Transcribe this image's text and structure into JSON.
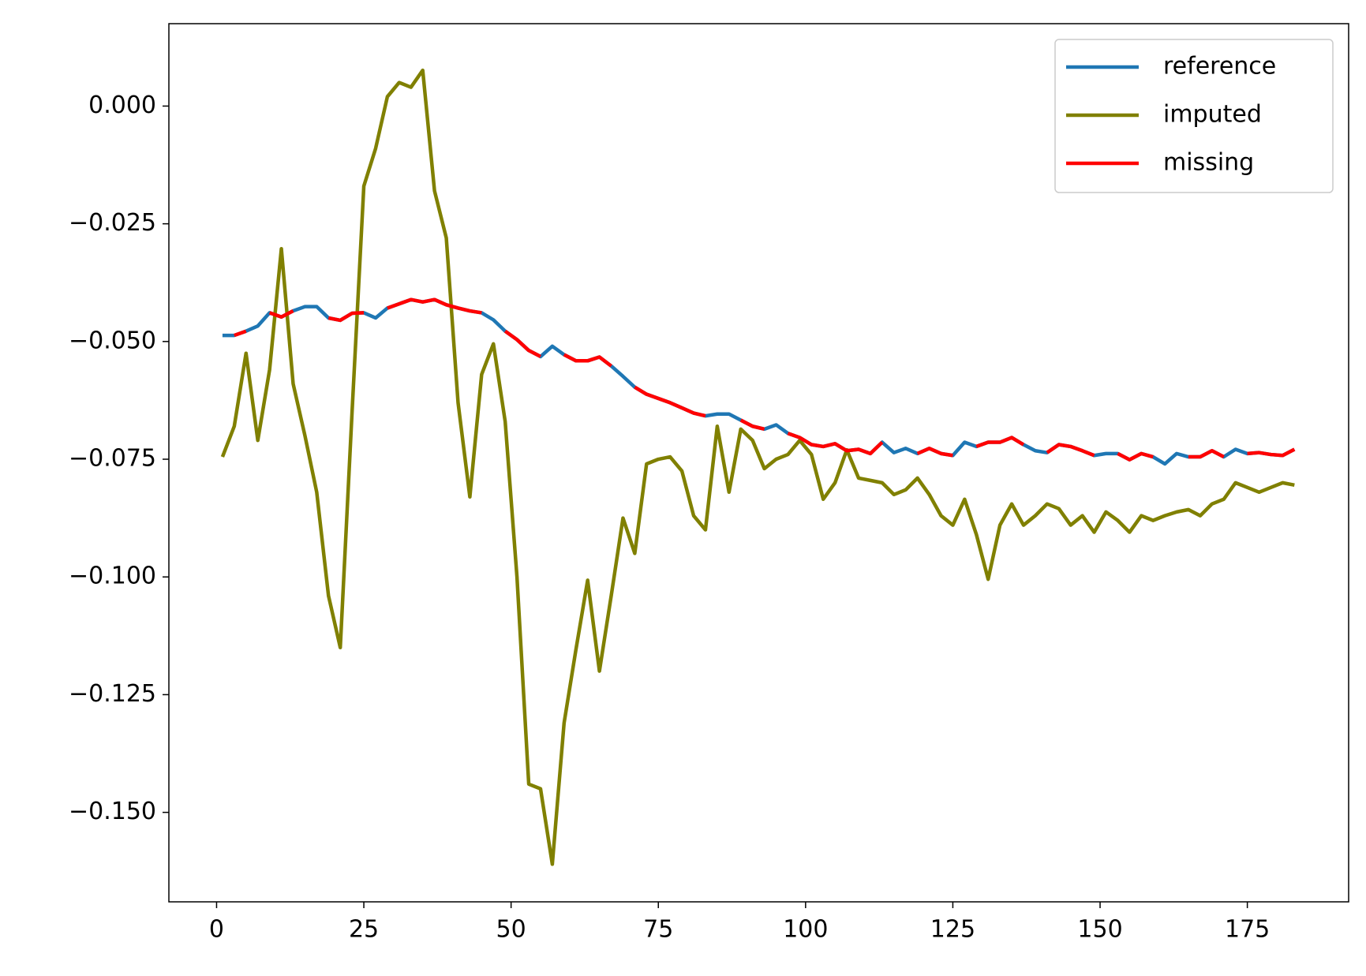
{
  "chart_data": {
    "type": "line",
    "x": [
      1,
      3,
      5,
      7,
      9,
      11,
      13,
      15,
      17,
      19,
      21,
      23,
      25,
      27,
      29,
      31,
      33,
      35,
      37,
      39,
      41,
      43,
      45,
      47,
      49,
      51,
      53,
      55,
      57,
      59,
      61,
      63,
      65,
      67,
      69,
      71,
      73,
      75,
      77,
      79,
      81,
      83,
      85,
      87,
      89,
      91,
      93,
      95,
      97,
      99,
      101,
      103,
      105,
      107,
      109,
      111,
      113,
      115,
      117,
      119,
      121,
      123,
      125,
      127,
      129,
      131,
      133,
      135,
      137,
      139,
      141,
      143,
      145,
      147,
      149,
      151,
      153,
      155,
      157,
      159,
      161,
      163,
      165,
      167,
      169,
      171,
      173,
      175,
      177,
      179,
      181,
      183
    ],
    "series": [
      {
        "name": "reference",
        "color": "#1f77b4",
        "values": [
          -0.0487,
          -0.0487,
          -0.0478,
          -0.0467,
          -0.0439,
          -0.0448,
          -0.0435,
          -0.0426,
          -0.0426,
          -0.045,
          -0.0455,
          -0.044,
          -0.0439,
          -0.045,
          -0.0429,
          -0.042,
          -0.0411,
          -0.0416,
          -0.0411,
          -0.0422,
          -0.0429,
          -0.0435,
          -0.0439,
          -0.0454,
          -0.0478,
          -0.0496,
          -0.0519,
          -0.0532,
          -0.051,
          -0.0528,
          -0.0541,
          -0.0541,
          -0.0533,
          -0.0552,
          -0.0574,
          -0.0597,
          -0.0612,
          -0.0621,
          -0.063,
          -0.0641,
          -0.0652,
          -0.0658,
          -0.0654,
          -0.0654,
          -0.0667,
          -0.068,
          -0.0686,
          -0.0677,
          -0.0695,
          -0.0704,
          -0.0719,
          -0.0723,
          -0.0717,
          -0.0732,
          -0.0729,
          -0.0738,
          -0.0714,
          -0.0736,
          -0.0727,
          -0.0738,
          -0.0727,
          -0.0738,
          -0.0742,
          -0.0714,
          -0.0723,
          -0.0714,
          -0.0714,
          -0.0704,
          -0.0719,
          -0.0732,
          -0.0736,
          -0.0719,
          -0.0723,
          -0.0732,
          -0.0742,
          -0.0738,
          -0.0738,
          -0.0751,
          -0.0738,
          -0.0745,
          -0.076,
          -0.0738,
          -0.0745,
          -0.0745,
          -0.0732,
          -0.0745,
          -0.0729,
          -0.0738,
          -0.0736,
          -0.074,
          -0.0742,
          -0.0729
        ]
      },
      {
        "name": "imputed",
        "color": "#808000",
        "values": [
          -0.0745,
          -0.068,
          -0.0525,
          -0.071,
          -0.056,
          -0.0303,
          -0.059,
          -0.07,
          -0.082,
          -0.104,
          -0.115,
          -0.065,
          -0.017,
          -0.009,
          0.002,
          0.005,
          0.004,
          0.0076,
          -0.018,
          -0.028,
          -0.063,
          -0.083,
          -0.057,
          -0.0505,
          -0.067,
          -0.1,
          -0.144,
          -0.145,
          -0.161,
          -0.131,
          -0.1155,
          -0.1007,
          -0.12,
          -0.104,
          -0.0875,
          -0.095,
          -0.076,
          -0.075,
          -0.0745,
          -0.0775,
          -0.087,
          -0.09,
          -0.068,
          -0.082,
          -0.0686,
          -0.071,
          -0.077,
          -0.075,
          -0.074,
          -0.071,
          -0.074,
          -0.0835,
          -0.08,
          -0.073,
          -0.079,
          -0.0795,
          -0.08,
          -0.0825,
          -0.0815,
          -0.079,
          -0.0825,
          -0.087,
          -0.089,
          -0.0835,
          -0.091,
          -0.1005,
          -0.089,
          -0.0845,
          -0.089,
          -0.087,
          -0.0845,
          -0.0855,
          -0.089,
          -0.087,
          -0.0905,
          -0.0862,
          -0.088,
          -0.0905,
          -0.087,
          -0.088,
          -0.087,
          -0.0862,
          -0.0857,
          -0.087,
          -0.0845,
          -0.0835,
          -0.08,
          -0.081,
          -0.082,
          -0.081,
          -0.08,
          -0.0805
        ]
      },
      {
        "name": "missing",
        "color": "#ff0000",
        "values": [
          null,
          -0.0487,
          -0.0478,
          null,
          -0.0439,
          -0.0448,
          -0.0435,
          null,
          null,
          -0.045,
          -0.0455,
          -0.044,
          -0.0439,
          null,
          -0.0429,
          -0.042,
          -0.0411,
          -0.0416,
          -0.0411,
          -0.0422,
          -0.0429,
          -0.0435,
          -0.0439,
          null,
          -0.0478,
          -0.0496,
          -0.0519,
          -0.0532,
          null,
          -0.0528,
          -0.0541,
          -0.0541,
          -0.0533,
          -0.0552,
          null,
          -0.0597,
          -0.0612,
          -0.0621,
          -0.063,
          -0.0641,
          -0.0652,
          -0.0658,
          null,
          null,
          -0.0667,
          -0.068,
          -0.0686,
          null,
          -0.0695,
          -0.0704,
          -0.0719,
          -0.0723,
          -0.0717,
          -0.0732,
          -0.0729,
          -0.0738,
          -0.0714,
          null,
          null,
          -0.0738,
          -0.0727,
          -0.0738,
          -0.0742,
          null,
          -0.0723,
          -0.0714,
          -0.0714,
          -0.0704,
          -0.0719,
          null,
          -0.0736,
          -0.0719,
          -0.0723,
          -0.0732,
          -0.0742,
          null,
          -0.0738,
          -0.0751,
          -0.0738,
          -0.0745,
          null,
          null,
          -0.0745,
          -0.0745,
          -0.0732,
          -0.0745,
          null,
          -0.0738,
          -0.0736,
          -0.074,
          -0.0742,
          -0.0729
        ]
      }
    ],
    "xlim": [
      -8.1,
      192.2
    ],
    "xticks": [
      0,
      25,
      50,
      75,
      100,
      125,
      150,
      175
    ],
    "ylim": [
      -0.169,
      0.0175
    ],
    "yticks": [
      {
        "value": -0.15,
        "label": "−0.150"
      },
      {
        "value": -0.125,
        "label": "−0.125"
      },
      {
        "value": -0.1,
        "label": "−0.100"
      },
      {
        "value": -0.075,
        "label": "−0.075"
      },
      {
        "value": -0.05,
        "label": "−0.050"
      },
      {
        "value": -0.025,
        "label": "−0.025"
      },
      {
        "value": 0,
        "label": "0.000"
      }
    ],
    "legend": "upper right"
  }
}
